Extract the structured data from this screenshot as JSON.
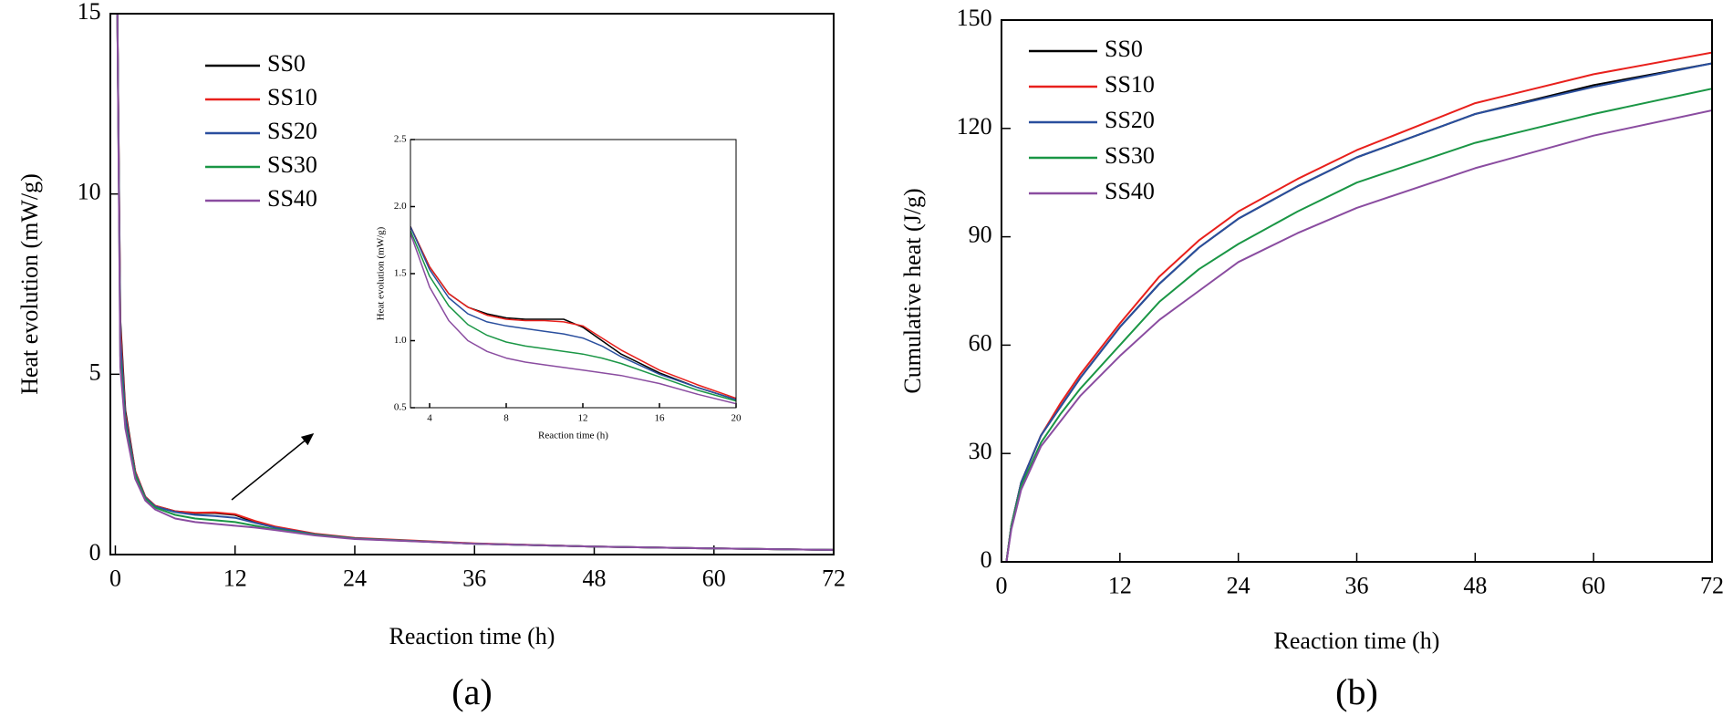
{
  "chart_data": [
    {
      "type": "line",
      "label": "(a)",
      "x_label": "Reaction time (h)",
      "y_label": "Heat evolution (mW/g)",
      "xlim": [
        -0.5,
        72
      ],
      "xticks": [
        0,
        12,
        24,
        36,
        48,
        60,
        72
      ],
      "ylim": [
        0,
        15
      ],
      "yticks": [
        0,
        5,
        10,
        15
      ],
      "legend": "upper left",
      "x": [
        0.2,
        0.5,
        1,
        2,
        3,
        4,
        6,
        8,
        10,
        12,
        14,
        16,
        20,
        24,
        36,
        48,
        60,
        72
      ],
      "series": [
        {
          "name": "SS0",
          "color": "#000000",
          "values": [
            15,
            6.5,
            4,
            2.3,
            1.6,
            1.35,
            1.2,
            1.15,
            1.15,
            1.1,
            0.9,
            0.75,
            0.57,
            0.45,
            0.3,
            0.22,
            0.17,
            0.13
          ]
        },
        {
          "name": "SS10",
          "color": "#e8201c",
          "values": [
            15,
            6.3,
            3.9,
            2.3,
            1.6,
            1.35,
            1.2,
            1.16,
            1.17,
            1.12,
            0.93,
            0.78,
            0.58,
            0.46,
            0.31,
            0.22,
            0.17,
            0.13
          ]
        },
        {
          "name": "SS20",
          "color": "#2a4f9e",
          "values": [
            15,
            6.0,
            3.8,
            2.25,
            1.58,
            1.33,
            1.18,
            1.1,
            1.07,
            1.02,
            0.88,
            0.75,
            0.56,
            0.45,
            0.3,
            0.22,
            0.17,
            0.13
          ]
        },
        {
          "name": "SS30",
          "color": "#1a9645",
          "values": [
            15,
            5.5,
            3.6,
            2.2,
            1.55,
            1.3,
            1.1,
            1.0,
            0.95,
            0.9,
            0.8,
            0.7,
            0.55,
            0.44,
            0.3,
            0.22,
            0.17,
            0.13
          ]
        },
        {
          "name": "SS40",
          "color": "#8a4ca0",
          "values": [
            15,
            5.2,
            3.5,
            2.1,
            1.5,
            1.25,
            1.0,
            0.9,
            0.85,
            0.8,
            0.75,
            0.68,
            0.53,
            0.43,
            0.3,
            0.22,
            0.17,
            0.13
          ]
        }
      ]
    },
    {
      "type": "line",
      "x_label": "Reaction time (h)",
      "y_label": "Heat evolution (mW/g)",
      "xlim": [
        3,
        20
      ],
      "xticks": [
        4,
        8,
        12,
        16,
        20
      ],
      "ylim": [
        0.5,
        2.5
      ],
      "yticks": [
        0.5,
        {
          "value": 1,
          "label": "1.0"
        },
        1.5,
        {
          "value": 2,
          "label": "2.0"
        },
        2.5
      ],
      "x": [
        3,
        4,
        5,
        6,
        7,
        8,
        9,
        10,
        11,
        12,
        13,
        14,
        16,
        18,
        20
      ],
      "series": [
        {
          "name": "SS0",
          "color": "#000000",
          "values": [
            1.85,
            1.55,
            1.35,
            1.25,
            1.2,
            1.17,
            1.16,
            1.16,
            1.16,
            1.1,
            1.0,
            0.9,
            0.76,
            0.65,
            0.56
          ]
        },
        {
          "name": "SS10",
          "color": "#e8201c",
          "values": [
            1.85,
            1.55,
            1.35,
            1.25,
            1.19,
            1.16,
            1.15,
            1.15,
            1.14,
            1.11,
            1.02,
            0.93,
            0.78,
            0.67,
            0.57
          ]
        },
        {
          "name": "SS20",
          "color": "#2a4f9e",
          "values": [
            1.85,
            1.53,
            1.32,
            1.2,
            1.14,
            1.11,
            1.09,
            1.07,
            1.05,
            1.02,
            0.96,
            0.88,
            0.75,
            0.65,
            0.56
          ]
        },
        {
          "name": "SS30",
          "color": "#1a9645",
          "values": [
            1.82,
            1.48,
            1.26,
            1.12,
            1.04,
            0.99,
            0.96,
            0.94,
            0.92,
            0.9,
            0.87,
            0.83,
            0.73,
            0.63,
            0.55
          ]
        },
        {
          "name": "SS40",
          "color": "#8a4ca0",
          "values": [
            1.8,
            1.4,
            1.15,
            1.0,
            0.92,
            0.87,
            0.84,
            0.82,
            0.8,
            0.78,
            0.76,
            0.74,
            0.68,
            0.6,
            0.53
          ]
        }
      ]
    },
    {
      "type": "line",
      "label": "(b)",
      "x_label": "Reaction time (h)",
      "y_label": "Cumulative heat (J/g)",
      "xlim": [
        0,
        72
      ],
      "xticks": [
        0,
        12,
        24,
        36,
        48,
        60,
        72
      ],
      "ylim": [
        0,
        150
      ],
      "yticks": [
        0,
        30,
        60,
        90,
        120,
        150
      ],
      "legend": "upper left",
      "x": [
        0.5,
        1,
        2,
        4,
        6,
        8,
        12,
        16,
        20,
        24,
        30,
        36,
        48,
        60,
        72
      ],
      "series": [
        {
          "name": "SS0",
          "color": "#000000",
          "values": [
            0,
            10,
            22,
            35,
            43,
            51,
            65,
            77,
            87,
            95,
            104,
            112,
            124,
            132,
            138
          ]
        },
        {
          "name": "SS10",
          "color": "#e8201c",
          "values": [
            0,
            10,
            22,
            35,
            44,
            52,
            66,
            79,
            89,
            97,
            106,
            114,
            127,
            135,
            141
          ]
        },
        {
          "name": "SS20",
          "color": "#2a4f9e",
          "values": [
            0,
            10,
            22,
            35,
            43,
            51,
            65,
            77,
            87,
            95,
            104,
            112,
            124,
            131.5,
            138
          ]
        },
        {
          "name": "SS30",
          "color": "#1a9645",
          "values": [
            0,
            10,
            21,
            33,
            41,
            48,
            60,
            72,
            81,
            88,
            97,
            105,
            116,
            124,
            131
          ]
        },
        {
          "name": "SS40",
          "color": "#8a4ca0",
          "values": [
            0,
            9,
            20,
            32,
            39,
            46,
            57,
            67,
            75,
            83,
            91,
            98,
            109,
            118,
            125
          ]
        }
      ]
    }
  ]
}
